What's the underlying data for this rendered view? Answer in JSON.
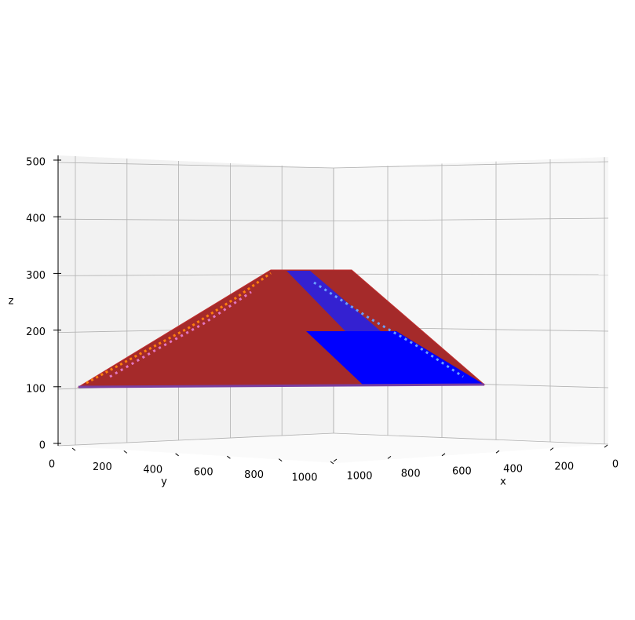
{
  "chart_data": {
    "type": "surface3d",
    "xlabel": "x",
    "ylabel": "y",
    "zlabel": "z",
    "xlim": [
      0,
      1000
    ],
    "ylim": [
      0,
      1000
    ],
    "zlim": [
      0,
      500
    ],
    "xticks": [
      0,
      200,
      400,
      600,
      800,
      1000
    ],
    "yticks": [
      0,
      200,
      400,
      600,
      800,
      1000
    ],
    "zticks": [
      0,
      100,
      200,
      300,
      400,
      500
    ],
    "grid": true
  }
}
